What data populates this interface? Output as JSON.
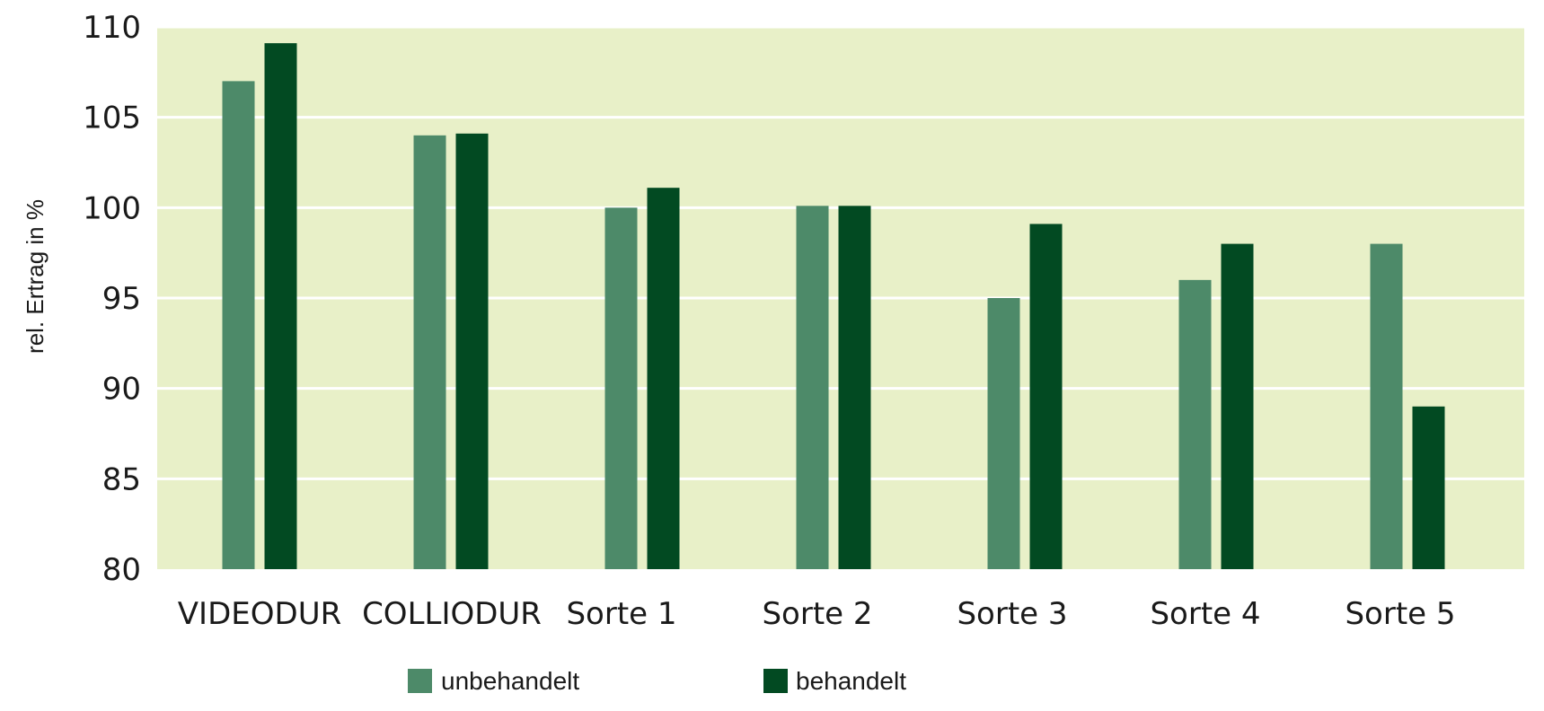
{
  "chart_data": {
    "type": "bar",
    "title": "",
    "xlabel": "",
    "ylabel": "rel. Ertrag in %",
    "ylim": [
      80,
      110
    ],
    "yticks": [
      80,
      85,
      90,
      95,
      100,
      105,
      110
    ],
    "grid": true,
    "legend_position": "bottom",
    "categories": [
      "VIDEODUR",
      "COLLIODUR",
      "Sorte 1",
      "Sorte 2",
      "Sorte 3",
      "Sorte 4",
      "Sorte 5"
    ],
    "series": [
      {
        "name": "unbehandelt",
        "color": "#4d8a69",
        "values": [
          107,
          104,
          100,
          100.1,
          95,
          96,
          98
        ]
      },
      {
        "name": "behandelt",
        "color": "#024a22",
        "values": [
          109.1,
          104.1,
          101.1,
          100.1,
          99.1,
          98,
          89
        ]
      }
    ],
    "colors": {
      "plot_background": "#e8f0c8",
      "gridline": "#ffffff"
    }
  }
}
